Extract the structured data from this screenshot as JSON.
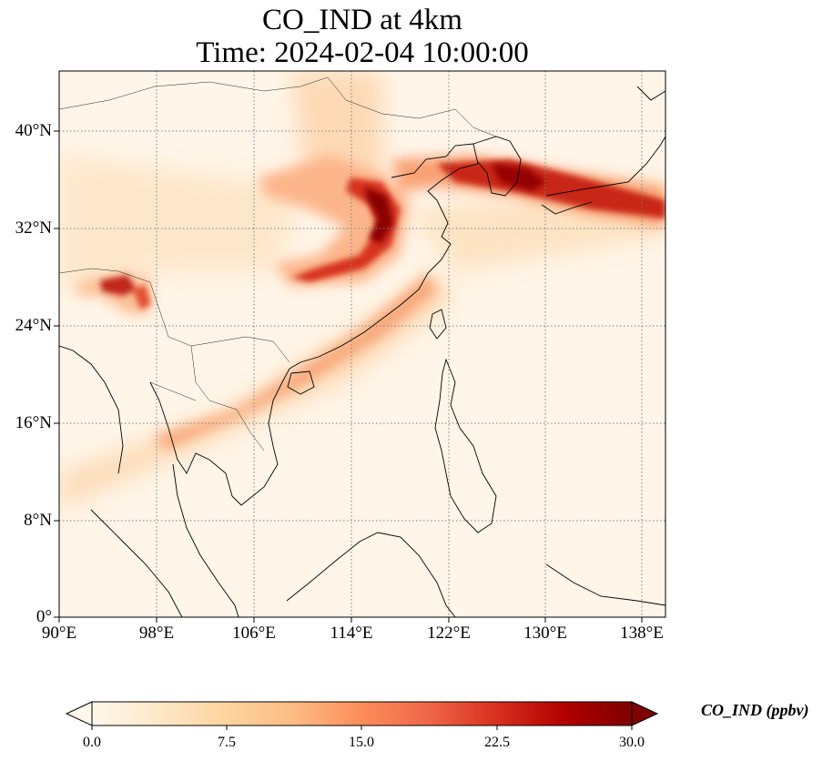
{
  "title": {
    "line1": "CO_IND at 4km",
    "line2": "Time: 2024-02-04 10:00:00"
  },
  "map": {
    "lon_range": [
      90,
      139
    ],
    "lat_range": [
      0,
      44
    ],
    "gridlines": "dotted",
    "colormap": "OrRd",
    "x_ticks": [
      "90°E",
      "98°E",
      "106°E",
      "114°E",
      "122°E",
      "130°E",
      "138°E"
    ],
    "y_ticks": [
      "0°",
      "8°N",
      "16°N",
      "24°N",
      "32°N",
      "40°N"
    ]
  },
  "colorbar": {
    "label": "CO_IND (ppbv)",
    "min": 0,
    "max": 30,
    "ticks": [
      "0.0",
      "7.5",
      "15.0",
      "22.5",
      "30.0"
    ],
    "extend": "both",
    "colors": [
      "#fff7ec",
      "#fee8c8",
      "#fdd49e",
      "#fdbb84",
      "#fc8d59",
      "#ef6548",
      "#d7301f",
      "#b30000",
      "#7f0000"
    ]
  }
}
